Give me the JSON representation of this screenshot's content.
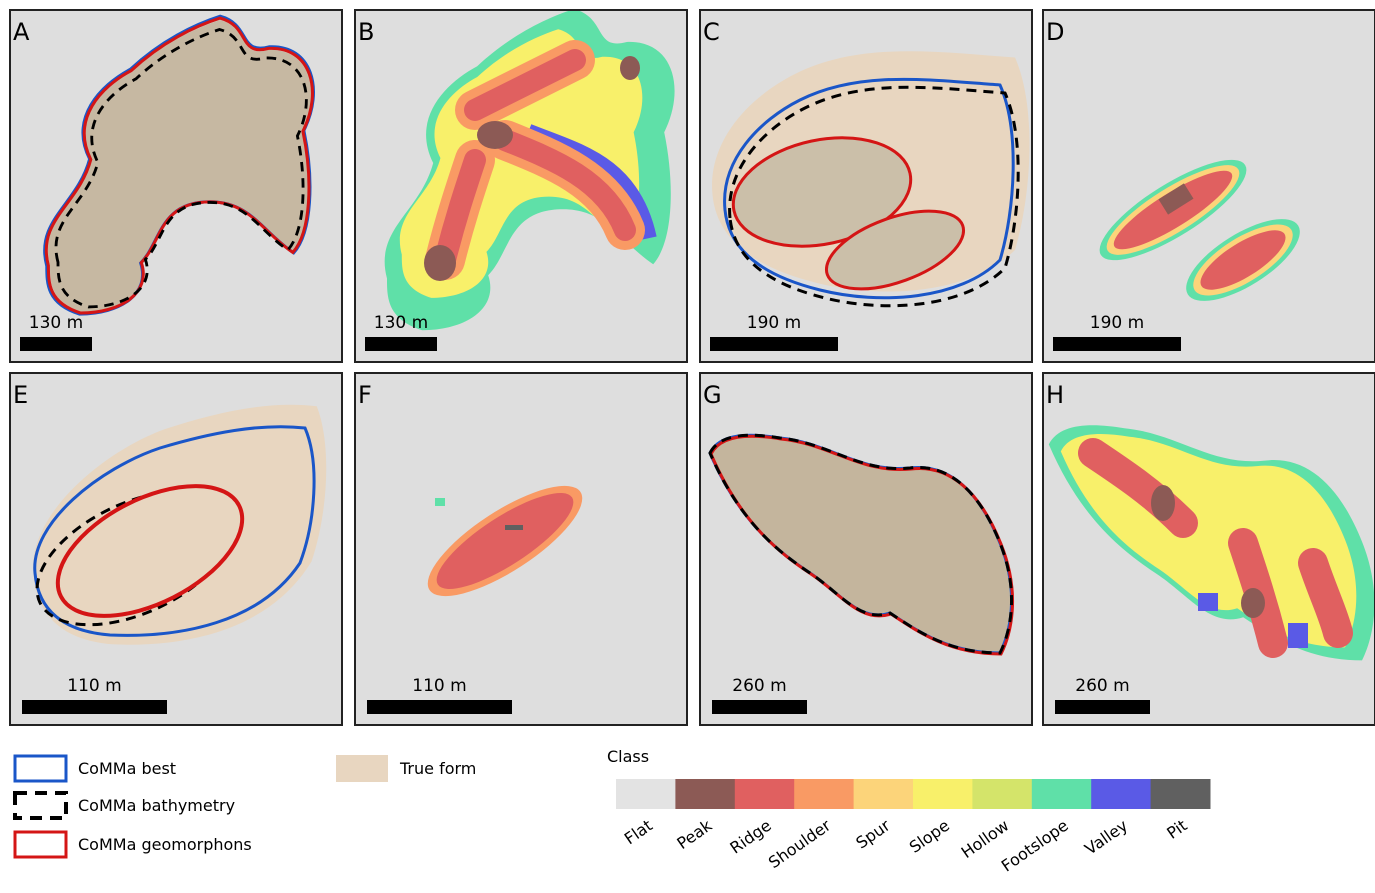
{
  "panels": [
    {
      "label": "A",
      "scale": "130 m"
    },
    {
      "label": "B",
      "scale": "130 m"
    },
    {
      "label": "C",
      "scale": "190 m"
    },
    {
      "label": "D",
      "scale": "190 m"
    },
    {
      "label": "E",
      "scale": "110 m"
    },
    {
      "label": "F",
      "scale": "110 m"
    },
    {
      "label": "G",
      "scale": "260 m"
    },
    {
      "label": "H",
      "scale": "260 m"
    }
  ],
  "legend": {
    "outlines": [
      "CoMMa best",
      "CoMMa bathymetry",
      "CoMMa geomorphons"
    ],
    "true_form": "True form"
  },
  "class_legend": {
    "title": "Class",
    "classes": [
      {
        "name": "Flat",
        "color": "#e3e3e3"
      },
      {
        "name": "Peak",
        "color": "#8c5a55"
      },
      {
        "name": "Ridge",
        "color": "#e06060"
      },
      {
        "name": "Shoulder",
        "color": "#f99a64"
      },
      {
        "name": "Spur",
        "color": "#fcd47a"
      },
      {
        "name": "Slope",
        "color": "#f8f06a"
      },
      {
        "name": "Hollow",
        "color": "#d4e46a"
      },
      {
        "name": "Footslope",
        "color": "#5fe0a8"
      },
      {
        "name": "Valley",
        "color": "#5a5ae6"
      },
      {
        "name": "Pit",
        "color": "#606060"
      }
    ]
  }
}
